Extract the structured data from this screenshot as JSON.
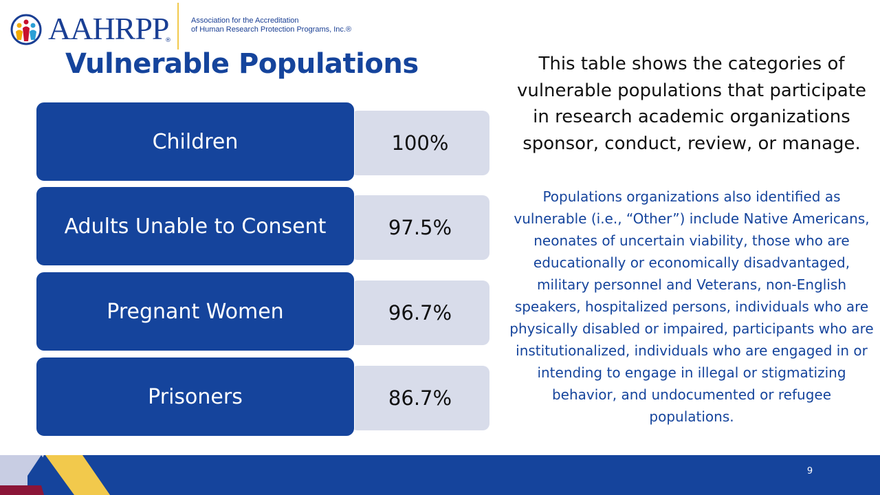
{
  "logo": {
    "wordmark": "AAHRPP",
    "registered": "®",
    "tagline_line1": "Association for the Accreditation",
    "tagline_line2": "of Human Research Protection Programs, Inc.®"
  },
  "title": "Vulnerable Populations",
  "table": [
    {
      "category": "Children",
      "value": "100%"
    },
    {
      "category": "Adults Unable to Consent",
      "value": "97.5%"
    },
    {
      "category": "Pregnant Women",
      "value": "96.7%"
    },
    {
      "category": "Prisoners",
      "value": "86.7%"
    }
  ],
  "description": "This table shows the categories of vulnerable populations that participate in research academic organizations sponsor, conduct, review, or manage.",
  "note": "Populations organizations also identified as vulnerable (i.e., “Other”) include Native Americans, neonates of uncertain viability, those who are educationally or economically disadvantaged, military personnel and Veterans, non-English speakers, hospitalized persons, individuals who are physically disabled or impaired, participants who are institutionalized, individuals who are engaged in or intending to engage in illegal or stigmatizing behavior, and undocumented or refugee populations.",
  "page_number": "9",
  "colors": {
    "brand_blue": "#15449c",
    "value_box": "#d8dcea",
    "accent_yellow": "#f2c94c",
    "accent_maroon": "#8b1538"
  }
}
